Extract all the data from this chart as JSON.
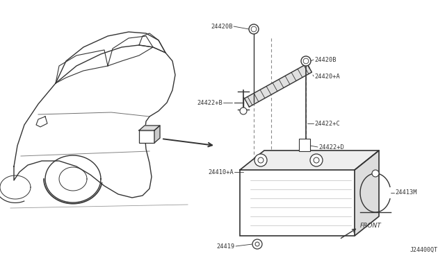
{
  "bg_color": "#ffffff",
  "line_color": "#333333",
  "dashed_color": "#888888",
  "fig_width": 6.4,
  "fig_height": 3.72,
  "dpi": 100,
  "footer_code": "J24400QT",
  "front_label": "FRONT",
  "part_labels": {
    "24420B_top": "24420B",
    "24420B_right": "24420B",
    "24420A": "24420+A",
    "24422B": "24422+B",
    "24422C": "24422+C",
    "24410A": "24410+A",
    "24422D": "24422+D",
    "24413M": "24413M",
    "24419": "24419"
  }
}
